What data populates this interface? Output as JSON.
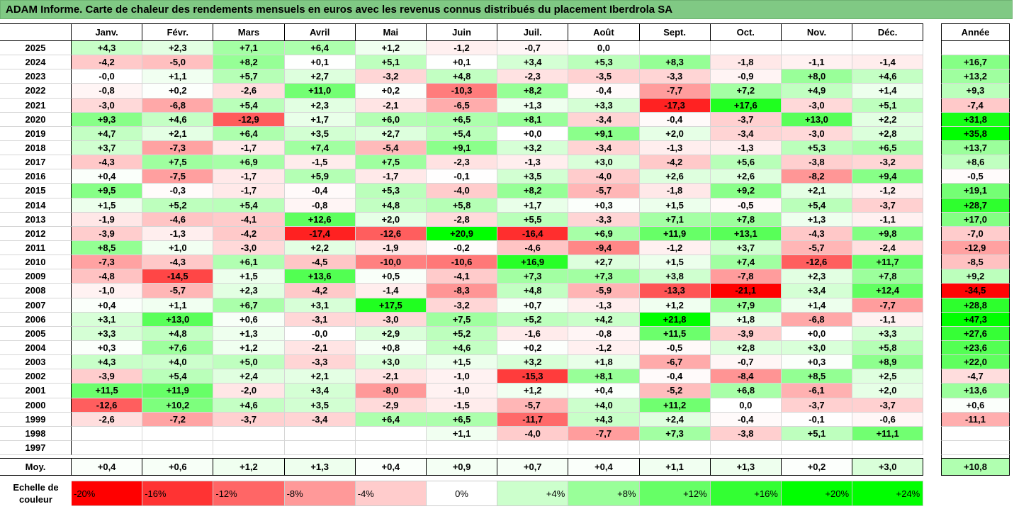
{
  "title": "ADAM Informe. Carte de chaleur des rendements mensuels en euros avec les revenus connus distribués du placement Iberdrola SA",
  "year_header": "Année",
  "avg_label": "Moy.",
  "scale_label": "Echelle de couleur",
  "colors": {
    "neg_max": "#ff0000",
    "zero": "#ffffff",
    "pos_max": "#00ff00"
  },
  "chart_data": {
    "type": "heatmap",
    "title": "ADAM Informe. Carte de chaleur des rendements mensuels en euros avec les revenus connus distribués du placement Iberdrola SA",
    "months": [
      "Janv.",
      "Févr.",
      "Mars",
      "Avril",
      "Mai",
      "Juin",
      "Juil.",
      "Août",
      "Sept.",
      "Oct.",
      "Nov.",
      "Déc."
    ],
    "rows": [
      {
        "year": "2025",
        "values": [
          "+4,3",
          "+2,3",
          "+7,1",
          "+6,4",
          "+1,2",
          "-1,2",
          "-0,7",
          "0,0",
          "",
          "",
          "",
          ""
        ],
        "annual": ""
      },
      {
        "year": "2024",
        "values": [
          "-4,2",
          "-5,0",
          "+8,2",
          "+0,1",
          "+5,1",
          "+0,1",
          "+3,4",
          "+5,3",
          "+8,3",
          "-1,8",
          "-1,1",
          "-1,4"
        ],
        "annual": "+16,7"
      },
      {
        "year": "2023",
        "values": [
          "-0,0",
          "+1,1",
          "+5,7",
          "+2,7",
          "-3,2",
          "+4,8",
          "-2,3",
          "-3,5",
          "-3,3",
          "-0,9",
          "+8,0",
          "+4,6"
        ],
        "annual": "+13,2"
      },
      {
        "year": "2022",
        "values": [
          "-0,8",
          "+0,2",
          "-2,6",
          "+11,0",
          "+0,2",
          "-10,3",
          "+8,2",
          "-0,4",
          "-7,7",
          "+7,2",
          "+4,9",
          "+1,4"
        ],
        "annual": "+9,3"
      },
      {
        "year": "2021",
        "values": [
          "-3,0",
          "-6,8",
          "+5,4",
          "+2,3",
          "-2,1",
          "-6,5",
          "+1,3",
          "+3,3",
          "-17,3",
          "+17,6",
          "-3,0",
          "+5,1"
        ],
        "annual": "-7,4"
      },
      {
        "year": "2020",
        "values": [
          "+9,3",
          "+4,6",
          "-12,9",
          "+1,7",
          "+6,0",
          "+6,5",
          "+8,1",
          "-3,4",
          "-0,4",
          "-3,7",
          "+13,0",
          "+2,2"
        ],
        "annual": "+31,8"
      },
      {
        "year": "2019",
        "values": [
          "+4,7",
          "+2,1",
          "+6,4",
          "+3,5",
          "+2,7",
          "+5,4",
          "+0,0",
          "+9,1",
          "+2,0",
          "-3,4",
          "-3,0",
          "+2,8"
        ],
        "annual": "+35,8"
      },
      {
        "year": "2018",
        "values": [
          "+3,7",
          "-7,3",
          "-1,7",
          "+7,4",
          "-5,4",
          "+9,1",
          "+3,2",
          "-3,4",
          "-1,3",
          "-1,3",
          "+5,3",
          "+6,5"
        ],
        "annual": "+13,7"
      },
      {
        "year": "2017",
        "values": [
          "-4,3",
          "+7,5",
          "+6,9",
          "-1,5",
          "+7,5",
          "-2,3",
          "-1,3",
          "+3,0",
          "-4,2",
          "+5,6",
          "-3,8",
          "-3,2"
        ],
        "annual": "+8,6"
      },
      {
        "year": "2016",
        "values": [
          "+0,4",
          "-7,5",
          "-1,7",
          "+5,9",
          "-1,7",
          "-0,1",
          "+3,5",
          "-4,0",
          "+2,6",
          "+2,6",
          "-8,2",
          "+9,4"
        ],
        "annual": "-0,5"
      },
      {
        "year": "2015",
        "values": [
          "+9,5",
          "-0,3",
          "-1,7",
          "-0,4",
          "+5,3",
          "-4,0",
          "+8,2",
          "-5,7",
          "-1,8",
          "+9,2",
          "+2,1",
          "-1,2"
        ],
        "annual": "+19,1"
      },
      {
        "year": "2014",
        "values": [
          "+1,5",
          "+5,2",
          "+5,4",
          "-0,8",
          "+4,8",
          "+5,8",
          "+1,7",
          "+0,3",
          "+1,5",
          "-0,5",
          "+5,4",
          "-3,7"
        ],
        "annual": "+28,7"
      },
      {
        "year": "2013",
        "values": [
          "-1,9",
          "-4,6",
          "-4,1",
          "+12,6",
          "+2,0",
          "-2,8",
          "+5,5",
          "-3,3",
          "+7,1",
          "+7,8",
          "+1,3",
          "-1,1"
        ],
        "annual": "+17,0"
      },
      {
        "year": "2012",
        "values": [
          "-3,9",
          "-1,3",
          "-4,2",
          "-17,4",
          "-12,6",
          "+20,9",
          "-16,4",
          "+6,9",
          "+11,9",
          "+13,1",
          "-4,3",
          "+9,8"
        ],
        "annual": "-7,0"
      },
      {
        "year": "2011",
        "values": [
          "+8,5",
          "+1,0",
          "-3,0",
          "+2,2",
          "-1,9",
          "-0,2",
          "-4,6",
          "-9,4",
          "-1,2",
          "+3,7",
          "-5,7",
          "-2,4"
        ],
        "annual": "-12,9"
      },
      {
        "year": "2010",
        "values": [
          "-7,3",
          "-4,3",
          "+6,1",
          "-4,5",
          "-10,0",
          "-10,6",
          "+16,9",
          "+2,7",
          "+1,5",
          "+7,4",
          "-12,6",
          "+11,7"
        ],
        "annual": "-8,5"
      },
      {
        "year": "2009",
        "values": [
          "-4,8",
          "-14,5",
          "+1,5",
          "+13,6",
          "+0,5",
          "-4,1",
          "+7,3",
          "+7,3",
          "+3,8",
          "-7,8",
          "+2,3",
          "+7,8"
        ],
        "annual": "+9,2"
      },
      {
        "year": "2008",
        "values": [
          "-1,0",
          "-5,7",
          "+2,3",
          "-4,2",
          "-1,4",
          "-8,3",
          "+4,8",
          "-5,9",
          "-13,3",
          "-21,1",
          "+3,4",
          "+12,4"
        ],
        "annual": "-34,5"
      },
      {
        "year": "2007",
        "values": [
          "+0,4",
          "+1,1",
          "+6,7",
          "+3,1",
          "+17,5",
          "-3,2",
          "+0,7",
          "-1,3",
          "+1,2",
          "+7,9",
          "+1,4",
          "-7,7"
        ],
        "annual": "+28,8"
      },
      {
        "year": "2006",
        "values": [
          "+3,1",
          "+13,0",
          "+0,6",
          "-3,1",
          "-3,0",
          "+7,5",
          "+5,2",
          "+4,2",
          "+21,8",
          "+1,8",
          "-6,8",
          "-1,1"
        ],
        "annual": "+47,3"
      },
      {
        "year": "2005",
        "values": [
          "+3,3",
          "+4,8",
          "+1,3",
          "-0,0",
          "+2,9",
          "+5,2",
          "-1,6",
          "-0,8",
          "+11,5",
          "-3,9",
          "+0,0",
          "+3,3"
        ],
        "annual": "+27,6"
      },
      {
        "year": "2004",
        "values": [
          "+0,3",
          "+7,6",
          "+1,2",
          "-2,1",
          "+0,8",
          "+4,6",
          "+0,2",
          "-1,2",
          "-0,5",
          "+2,8",
          "+3,0",
          "+5,8"
        ],
        "annual": "+23,6"
      },
      {
        "year": "2003",
        "values": [
          "+4,3",
          "+4,0",
          "+5,0",
          "-3,3",
          "+3,0",
          "+1,5",
          "+3,2",
          "+1,8",
          "-6,7",
          "-0,7",
          "+0,3",
          "+8,9"
        ],
        "annual": "+22,0"
      },
      {
        "year": "2002",
        "values": [
          "-3,9",
          "+5,4",
          "+2,4",
          "+2,1",
          "-2,1",
          "-1,0",
          "-15,3",
          "+8,1",
          "-0,4",
          "-8,4",
          "+8,5",
          "+2,5"
        ],
        "annual": "-4,7"
      },
      {
        "year": "2001",
        "values": [
          "+11,5",
          "+11,9",
          "-2,0",
          "+3,4",
          "-8,0",
          "-1,0",
          "+1,2",
          "+0,4",
          "-5,2",
          "+6,8",
          "-6,1",
          "+2,0"
        ],
        "annual": "+13,6"
      },
      {
        "year": "2000",
        "values": [
          "-12,6",
          "+10,2",
          "+4,6",
          "+3,5",
          "-2,9",
          "-1,5",
          "-5,7",
          "+4,0",
          "+11,2",
          "0,0",
          "-3,7",
          "-3,7"
        ],
        "annual": "+0,6"
      },
      {
        "year": "1999",
        "values": [
          "-2,6",
          "-7,2",
          "-3,7",
          "-3,4",
          "+6,4",
          "+6,5",
          "-11,7",
          "+4,3",
          "+2,4",
          "-0,4",
          "-0,1",
          "-0,6"
        ],
        "annual": "-11,1"
      },
      {
        "year": "1998",
        "values": [
          "",
          "",
          "",
          "",
          "",
          "+1,1",
          "-4,0",
          "-7,7",
          "+7,3",
          "-3,8",
          "+5,1",
          "+11,1"
        ],
        "annual": ""
      },
      {
        "year": "1997",
        "values": [
          "",
          "",
          "",
          "",
          "",
          "",
          "",
          "",
          "",
          "",
          "",
          ""
        ],
        "annual": ""
      }
    ],
    "averages": [
      "+0,4",
      "+0,6",
      "+1,2",
      "+1,3",
      "+0,4",
      "+0,9",
      "+0,7",
      "+0,4",
      "+1,1",
      "+1,3",
      "+0,2",
      "+3,0"
    ],
    "average_annual": "+10,8",
    "scale": [
      "-20%",
      "-16%",
      "-12%",
      "-8%",
      "-4%",
      "0%",
      "+4%",
      "+8%",
      "+12%",
      "+16%",
      "+20%",
      "+24%"
    ]
  }
}
